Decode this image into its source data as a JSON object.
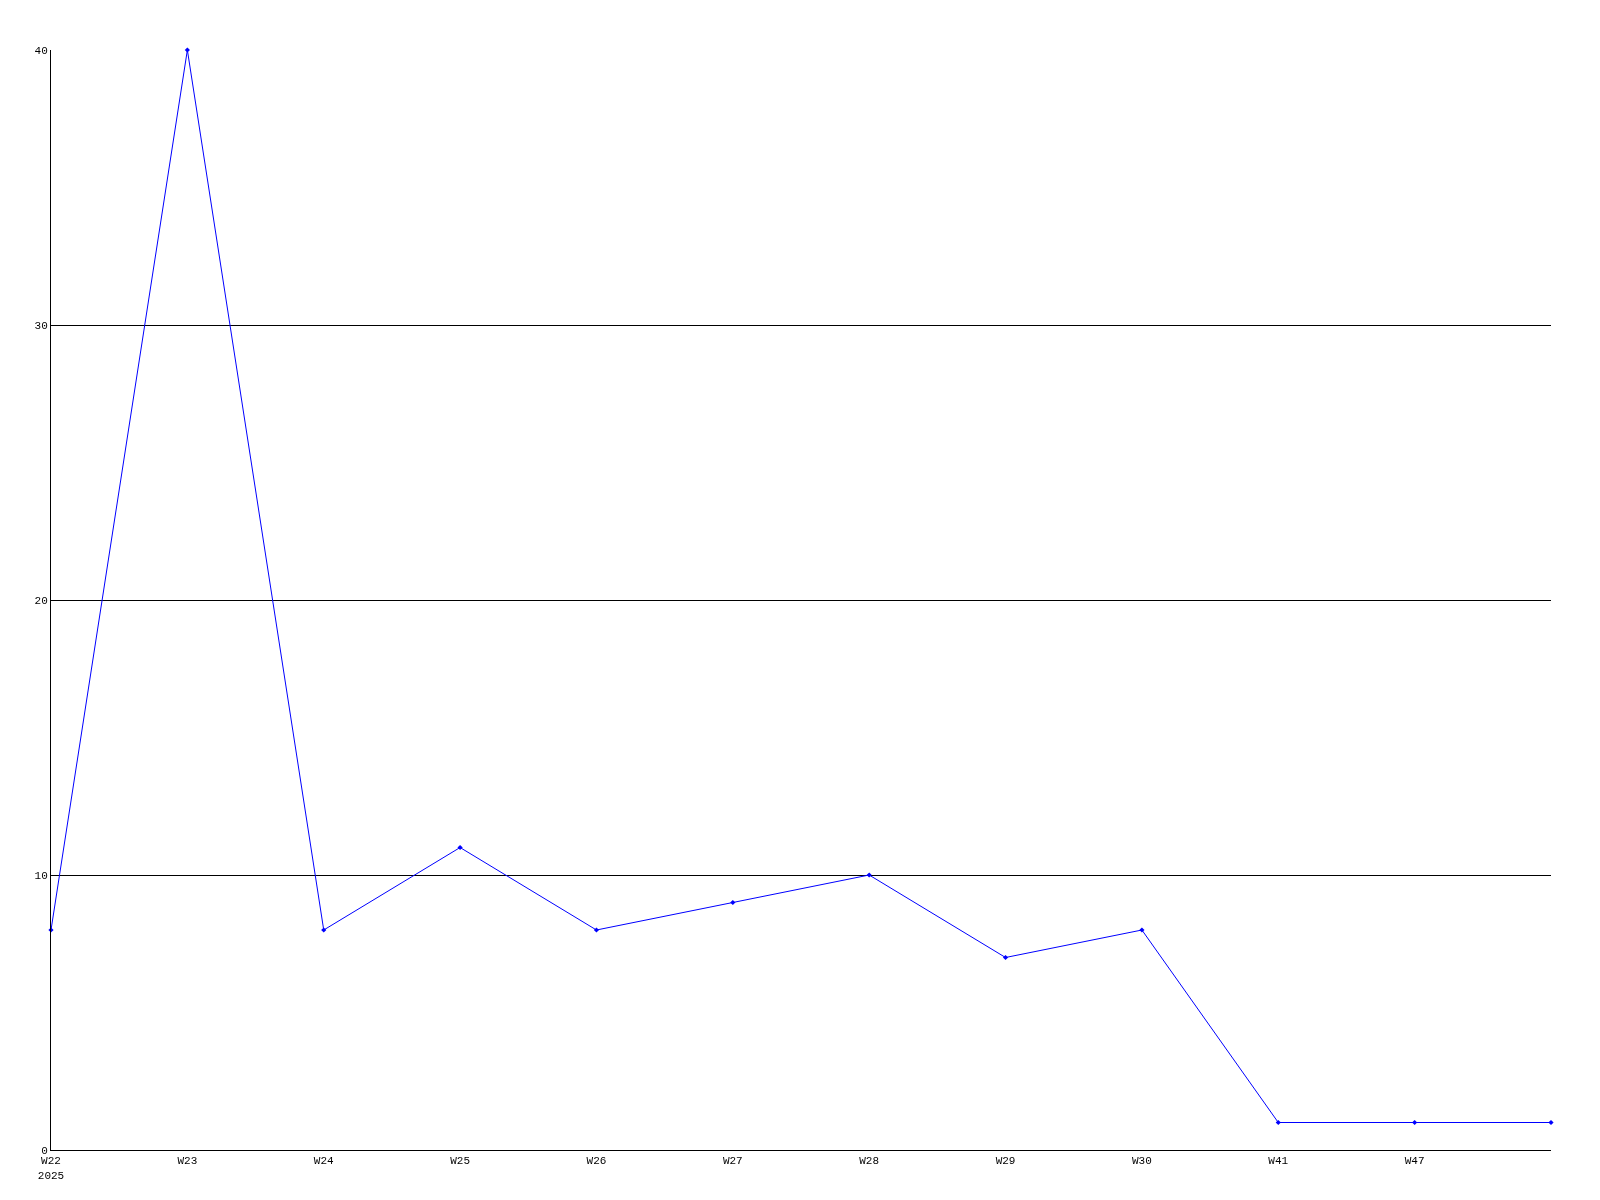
{
  "chart_data": {
    "type": "line",
    "categories": [
      "W22\n2025",
      "W23",
      "W24",
      "W25",
      "W26",
      "W27",
      "W28",
      "W29",
      "W30",
      "W41",
      "W47",
      null
    ],
    "series": [
      {
        "color": "#0000ff",
        "values": [
          8,
          40,
          8,
          11,
          8,
          9,
          10,
          7,
          8,
          1,
          1,
          1
        ]
      }
    ],
    "ylim": [
      0,
      40
    ],
    "yticks": [
      0,
      10,
      20,
      30,
      40
    ],
    "grid": "y",
    "legend": false,
    "marker": "diamond",
    "line_style": "solid"
  }
}
